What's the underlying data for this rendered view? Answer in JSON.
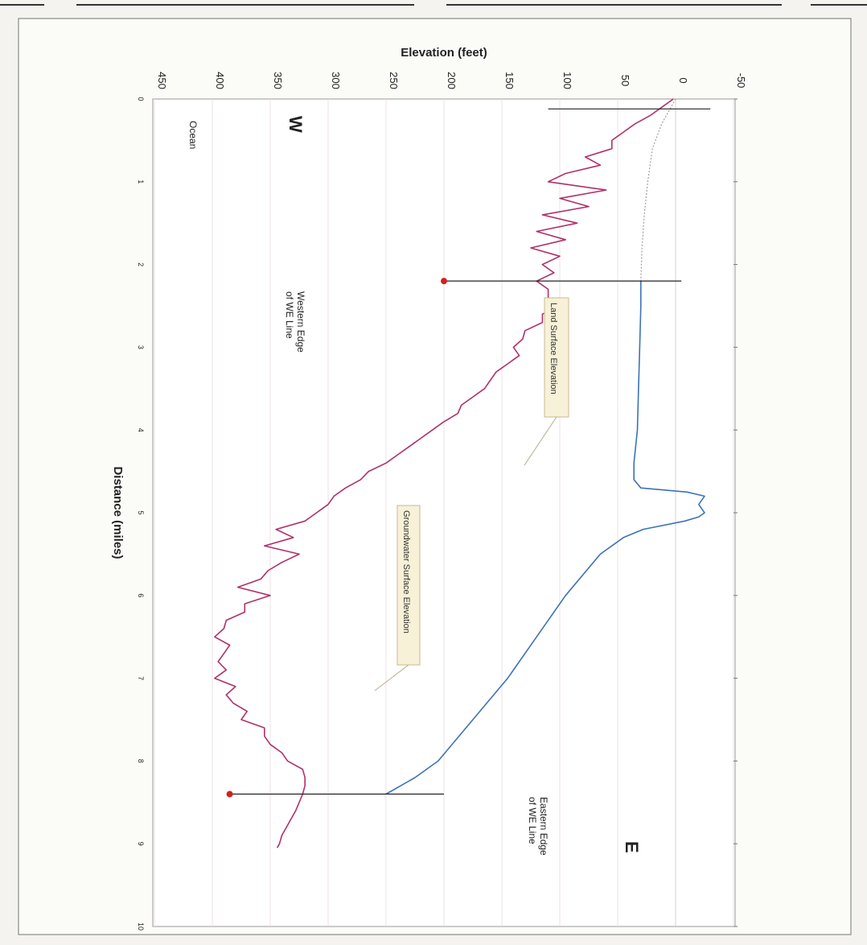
{
  "chart_data": {
    "type": "line",
    "orientation": "rotated 90 degrees clockwise (distance runs top to bottom, elevation runs right to left)",
    "xlabel": "Distance (miles)",
    "ylabel": "Elevation (feet)",
    "xlim": [
      0,
      10
    ],
    "ylim": [
      -50,
      450
    ],
    "x_ticks": [
      "0",
      "1",
      "2",
      "3",
      "4",
      "5",
      "6",
      "7",
      "8",
      "9",
      "10"
    ],
    "y_ticks": [
      "-50",
      "0",
      "50",
      "100",
      "150",
      "200",
      "250",
      "300",
      "350",
      "400",
      "450"
    ],
    "grid": true,
    "series": [
      {
        "name": "Land Surface Elevation",
        "color": "#b0306a",
        "x": [
          0.0,
          0.1,
          0.2,
          0.3,
          0.4,
          0.5,
          0.6,
          0.7,
          0.8,
          0.9,
          1.0,
          1.1,
          1.2,
          1.3,
          1.4,
          1.5,
          1.6,
          1.7,
          1.8,
          1.9,
          2.0,
          2.1,
          2.2,
          2.3,
          2.4,
          2.5,
          2.6,
          2.7,
          2.8,
          2.9,
          3.0,
          3.1,
          3.2,
          3.3,
          3.4,
          3.5,
          3.6,
          3.7,
          3.8,
          3.9,
          4.0,
          4.1,
          4.2,
          4.3,
          4.4,
          4.5,
          4.6,
          4.7,
          4.8,
          4.9,
          5.0,
          5.1,
          5.2,
          5.3,
          5.4,
          5.5,
          5.6,
          5.7,
          5.8,
          5.9,
          6.0,
          6.1,
          6.2,
          6.3,
          6.4,
          6.5,
          6.6,
          6.7,
          6.8,
          6.9,
          7.0,
          7.1,
          7.2,
          7.3,
          7.4,
          7.5,
          7.6,
          7.7,
          7.8,
          7.9,
          8.0,
          8.1,
          8.2,
          8.3,
          8.4,
          8.5,
          8.6,
          8.7,
          8.8,
          8.9,
          9.0,
          9.05
        ],
        "values": [
          2,
          12,
          22,
          35,
          45,
          55,
          55,
          78,
          65,
          95,
          110,
          60,
          100,
          75,
          115,
          85,
          120,
          95,
          125,
          100,
          115,
          105,
          120,
          110,
          110,
          100,
          115,
          115,
          130,
          132,
          140,
          135,
          145,
          155,
          160,
          165,
          175,
          185,
          188,
          200,
          210,
          220,
          230,
          240,
          250,
          265,
          272,
          285,
          295,
          300,
          310,
          320,
          345,
          330,
          355,
          325,
          340,
          352,
          358,
          378,
          350,
          372,
          372,
          388,
          390,
          398,
          385,
          390,
          395,
          388,
          398,
          380,
          388,
          382,
          370,
          375,
          355,
          355,
          350,
          340,
          335,
          322,
          320,
          320,
          322,
          325,
          328,
          332,
          336,
          340,
          342,
          344
        ]
      },
      {
        "name": "Groundwater Surface Elevation",
        "color": "#3d72b8",
        "x": [
          2.2,
          2.5,
          3.0,
          3.5,
          4.0,
          4.4,
          4.6,
          4.7,
          4.75,
          4.8,
          4.9,
          5.0,
          5.05,
          5.1,
          5.2,
          5.3,
          5.5,
          6.0,
          6.5,
          7.0,
          7.5,
          8.0,
          8.2,
          8.4
        ],
        "values": [
          30,
          30,
          31,
          32,
          33,
          36,
          36,
          30,
          -10,
          -25,
          -20,
          -25,
          -20,
          -8,
          28,
          45,
          65,
          95,
          120,
          145,
          175,
          205,
          225,
          250
        ]
      },
      {
        "name": "",
        "color": "#a89a9a",
        "dashed": true,
        "x": [
          0.0,
          0.3,
          0.6,
          1.0,
          1.4,
          1.8,
          2.2
        ],
        "values": [
          0,
          12,
          20,
          24,
          27,
          29,
          30
        ]
      }
    ],
    "annotations": {
      "w_label": "W",
      "e_label": "E",
      "ocean_label": "Ocean",
      "western_edge_line1": "Western Edge",
      "western_edge_line2": "of WE Line",
      "eastern_edge_line1": "Eastern Edge",
      "eastern_edge_line2": "of WE Line",
      "land_callout": "Land Surface Elevation",
      "groundwater_callout": "Groundwater Surface Elevation"
    },
    "markers": [
      {
        "x": 2.2,
        "y": 200,
        "color": "#d42020"
      },
      {
        "x": 8.4,
        "y": 385,
        "color": "#d42020"
      }
    ],
    "vertical_lines": [
      {
        "x": 0.12,
        "from": -30,
        "to": 110
      },
      {
        "x": 2.2,
        "from": -5,
        "to": 200
      },
      {
        "x": 8.4,
        "from": 200,
        "to": 385
      }
    ]
  }
}
